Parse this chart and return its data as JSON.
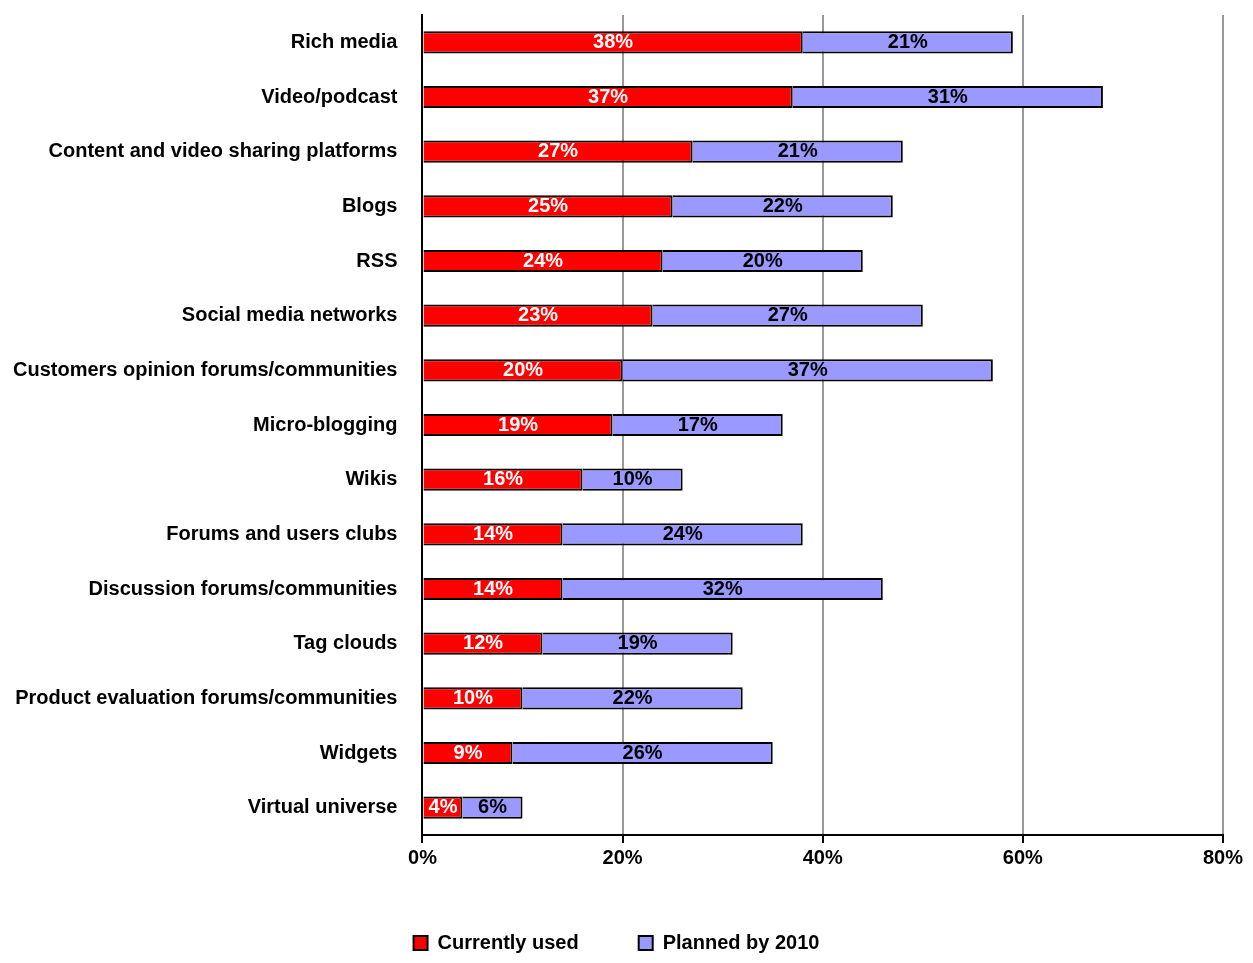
{
  "chart_data": {
    "type": "bar",
    "orientation": "horizontal",
    "stacked": true,
    "categories": [
      "Rich media",
      "Video/podcast",
      "Content and video sharing platforms",
      "Blogs",
      "RSS",
      "Social media networks",
      "Customers opinion forums/communities",
      "Micro-blogging",
      "Wikis",
      "Forums and users clubs",
      "Discussion forums/communities",
      "Tag clouds",
      "Product evaluation forums/communities",
      "Widgets",
      "Virtual universe"
    ],
    "series": [
      {
        "name": "Currently used",
        "color": "#ff0000",
        "values": [
          38,
          37,
          27,
          25,
          24,
          23,
          20,
          19,
          16,
          14,
          14,
          12,
          10,
          9,
          4
        ],
        "value_labels": [
          "38%",
          "37%",
          "27%",
          "25%",
          "24%",
          "23%",
          "20%",
          "19%",
          "16%",
          "14%",
          "14%",
          "12%",
          "10%",
          "9%",
          "4%"
        ]
      },
      {
        "name": "Planned by 2010",
        "color": "#9999ff",
        "values": [
          21,
          31,
          21,
          22,
          20,
          27,
          37,
          17,
          10,
          24,
          32,
          19,
          22,
          26,
          6
        ],
        "value_labels": [
          "21%",
          "31%",
          "21%",
          "22%",
          "20%",
          "27%",
          "37%",
          "17%",
          "10%",
          "24%",
          "32%",
          "19%",
          "22%",
          "26%",
          "6%"
        ]
      }
    ],
    "xlim": [
      0,
      80
    ],
    "xticks": [
      {
        "value": 0,
        "label": "0%"
      },
      {
        "value": 20,
        "label": "20%"
      },
      {
        "value": 40,
        "label": "40%"
      },
      {
        "value": 60,
        "label": "60%"
      },
      {
        "value": 80,
        "label": "80%"
      }
    ],
    "grid": "x",
    "legend": "bottom"
  }
}
